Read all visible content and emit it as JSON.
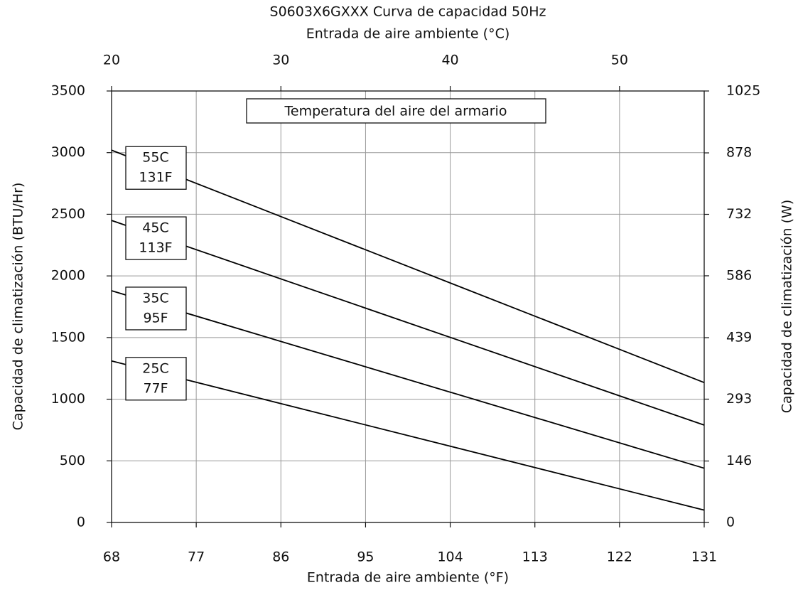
{
  "chart_data": {
    "type": "line",
    "title": "S0603X6GXXX Curva de capacidad 50Hz",
    "x_label": "Entrada de aire ambiente (°F)",
    "x2_label": "Entrada de aire ambiente (°C)",
    "y_label": "Capacidad de climatización (BTU/Hr)",
    "y2_label": "Capacidad de climatización (W)",
    "annotation": "Temperatura del aire del armario",
    "xlim": [
      68,
      131
    ],
    "xticks": [
      68,
      77,
      86,
      95,
      104,
      113,
      122,
      131
    ],
    "x2lim": [
      20,
      55
    ],
    "x2ticks": [
      20,
      30,
      40,
      50
    ],
    "ylim": [
      0,
      3500
    ],
    "yticks": [
      0,
      500,
      1000,
      1500,
      2000,
      2500,
      3000,
      3500
    ],
    "y2lim": [
      0,
      1025
    ],
    "y2ticks": [
      0,
      146,
      293,
      439,
      586,
      732,
      878,
      1025
    ],
    "grid": true,
    "series": [
      {
        "name": "55C",
        "labels": [
          "55C",
          "131F"
        ],
        "color": "#000000",
        "x": [
          68,
          131
        ],
        "values": [
          3020,
          1135
        ]
      },
      {
        "name": "45C",
        "labels": [
          "45C",
          "113F"
        ],
        "color": "#000000",
        "x": [
          68,
          131
        ],
        "values": [
          2450,
          790
        ]
      },
      {
        "name": "35C",
        "labels": [
          "35C",
          "95F"
        ],
        "color": "#000000",
        "x": [
          68,
          131
        ],
        "values": [
          1880,
          440
        ]
      },
      {
        "name": "25C",
        "labels": [
          "25C",
          "77F"
        ],
        "color": "#000000",
        "x": [
          68,
          131
        ],
        "values": [
          1310,
          100
        ]
      }
    ]
  }
}
